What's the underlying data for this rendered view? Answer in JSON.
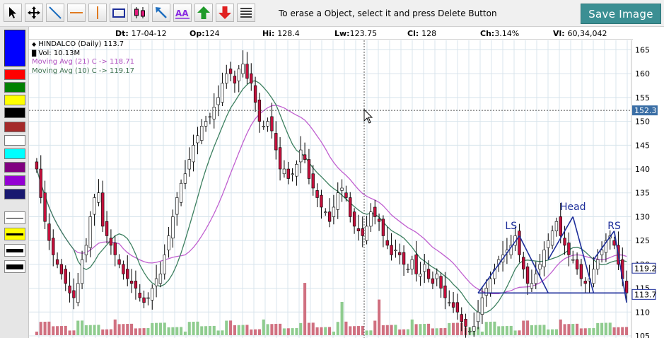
{
  "toolbar": {
    "tools": [
      {
        "name": "pointer-icon",
        "label": "Pointer"
      },
      {
        "name": "move-icon",
        "label": "Move"
      },
      {
        "name": "trendline-icon",
        "label": "Trend line"
      },
      {
        "name": "horizontal-line-icon",
        "label": "Horizontal line"
      },
      {
        "name": "vertical-line-icon",
        "label": "Vertical line"
      },
      {
        "name": "rectangle-icon",
        "label": "Rectangle"
      },
      {
        "name": "candle-icon",
        "label": "Candles"
      },
      {
        "name": "arrow-icon",
        "label": "Arrow"
      },
      {
        "name": "text-icon",
        "label": "Text"
      },
      {
        "name": "up-arrow-icon",
        "label": "Buy arrow"
      },
      {
        "name": "down-arrow-icon",
        "label": "Sell arrow"
      },
      {
        "name": "lines-icon",
        "label": "Lines"
      }
    ],
    "text_tool_glyph": "AA",
    "hint": "To erase a Object, select it and press Delete Button",
    "save_label": "Save Image"
  },
  "palette": {
    "colors": [
      "#0000ff",
      "#ff0000",
      "#008000",
      "#ffff00",
      "#000000",
      "#a52a2a",
      "#ffffff",
      "#00ffff",
      "#800080",
      "#9400d3",
      "#191970"
    ],
    "selected_color": "#0000ff",
    "line_widths": [
      1,
      3,
      5,
      7
    ],
    "selected_line_width": 3
  },
  "info": {
    "dt_label": "Dt:",
    "dt": "17-04-12",
    "op_label": "Op:",
    "op": "124",
    "hi_label": "Hi:",
    "hi": "128.4",
    "lw_label": "Lw:",
    "lw": "123.75",
    "cl_label": "Cl:",
    "cl": "128",
    "ch_label": "Ch:",
    "ch": "3.14%",
    "vl_label": "Vl:",
    "vl": "60,34,042"
  },
  "legend": {
    "title": "HINDALCO (Daily) 113.7",
    "vol": "Vol: 10.13M",
    "ma21": "Moving Avg (21) C -> 118.71",
    "ma10": "Moving Avg (10) C -> 119.17"
  },
  "colors": {
    "up_candle": "#ffffff",
    "down_candle": "#c4103c",
    "candle_border": "#000000",
    "ma21": "#c060d0",
    "ma10": "#3d8060",
    "pattern": "#1d2e9a",
    "vol_up": "#8fcc8f",
    "vol_down": "#d07080",
    "grid": "#d8e4ec",
    "crosshair": "#555555"
  },
  "annotations": {
    "ls": "LS",
    "head": "Head",
    "rs": "RS"
  },
  "crosshair": {
    "price": 152.3,
    "label": "152.3"
  },
  "price_tags": [
    {
      "value": 119.2,
      "label": "119.2"
    },
    {
      "value": 113.7,
      "label": "113.7"
    }
  ],
  "chart_data": {
    "type": "candlestick",
    "title": "HINDALCO (Daily) 113.7",
    "ylim": [
      105,
      167
    ],
    "y_ticks": [
      105,
      110,
      115,
      120,
      125,
      130,
      135,
      140,
      145,
      150,
      155,
      160,
      165
    ],
    "vol_ticks": [
      "0M",
      "10M",
      "20M",
      "30M",
      "40M"
    ],
    "closes": [
      140,
      134,
      129,
      125,
      122,
      120,
      118,
      116,
      114,
      113,
      116,
      121,
      124,
      130,
      134,
      135,
      128,
      126,
      124,
      122,
      120,
      118,
      117,
      116,
      115,
      113,
      112,
      113,
      115,
      117,
      118,
      122,
      126,
      130,
      134,
      137,
      139,
      142,
      145,
      147,
      149,
      150,
      151,
      153,
      155,
      158,
      160,
      160,
      158,
      161,
      162,
      159,
      158,
      154,
      150,
      149,
      150,
      148,
      144,
      140,
      140,
      138,
      139,
      141,
      144,
      142,
      138,
      136,
      134,
      132,
      131,
      129,
      132,
      135,
      136,
      134,
      130,
      128,
      127,
      126,
      128,
      131,
      130,
      129,
      126,
      124,
      122,
      123,
      122,
      120,
      119,
      121,
      118,
      118,
      120,
      117,
      116,
      118,
      115,
      113,
      112,
      111,
      110,
      108,
      107,
      106,
      107,
      110,
      113,
      115,
      117,
      119,
      121,
      122,
      123,
      124,
      126,
      122,
      119,
      116,
      116,
      118,
      120,
      123,
      125,
      127,
      129,
      126,
      124,
      122,
      121,
      119,
      117,
      116,
      117,
      119,
      121,
      123,
      125,
      126,
      124,
      120,
      117,
      114
    ],
    "moving_averages": [
      {
        "name": "Moving Avg (21) C",
        "last": 118.71
      },
      {
        "name": "Moving Avg (10) C",
        "last": 119.17
      }
    ]
  }
}
